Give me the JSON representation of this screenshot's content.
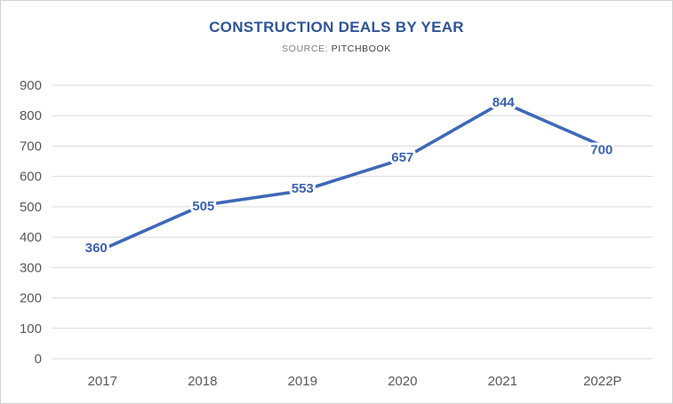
{
  "window": {
    "background": "#ffffff",
    "border_color": "#d2d2d2"
  },
  "chart_data": {
    "type": "line",
    "title": "CONSTRUCTION DEALS BY YEAR",
    "subtitle": {
      "label": "SOURCE:",
      "value": "PITCHBOOK"
    },
    "categories": [
      "2017",
      "2018",
      "2019",
      "2020",
      "2021",
      "2022P"
    ],
    "values": [
      360,
      505,
      553,
      657,
      844,
      700
    ],
    "series_name": "Construction deals",
    "xlabel": "",
    "ylabel": "",
    "ylim": [
      0,
      900
    ],
    "ytick_step": 100,
    "grid": true,
    "legend": "none",
    "style": {
      "line_color": "#3e68b8",
      "data_label_color": "#3a62b1",
      "title_color": "#2f5597",
      "subtitle_label_color": "#7f7f7f",
      "subtitle_value_color": "#404040",
      "axis_tick_color": "#595959",
      "gridline_color": "#d9d9d9"
    }
  }
}
